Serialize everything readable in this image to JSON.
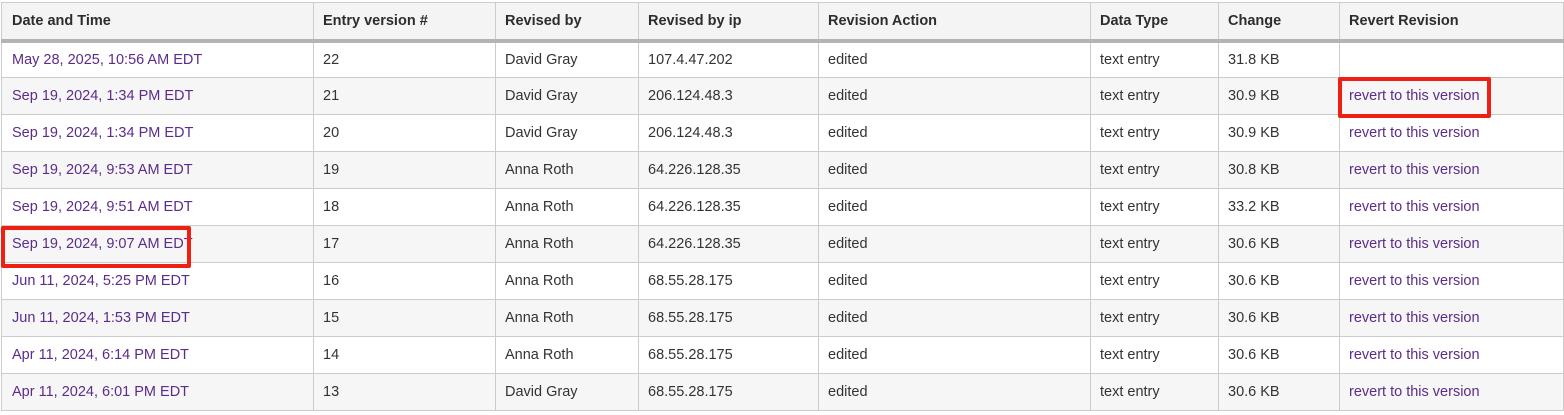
{
  "table": {
    "columns": [
      {
        "key": "date",
        "label": "Date and Time"
      },
      {
        "key": "version",
        "label": "Entry version #"
      },
      {
        "key": "revised_by",
        "label": "Revised by"
      },
      {
        "key": "revised_by_ip",
        "label": "Revised by ip"
      },
      {
        "key": "action",
        "label": "Revision Action"
      },
      {
        "key": "data_type",
        "label": "Data Type"
      },
      {
        "key": "change",
        "label": "Change"
      },
      {
        "key": "revert",
        "label": "Revert Revision"
      }
    ],
    "rows": [
      {
        "date": "May 28, 2025, 10:56 AM EDT",
        "version": "22",
        "revised_by": "David Gray",
        "revised_by_ip": "107.4.47.202",
        "action": "edited",
        "data_type": "text entry",
        "change": "31.8 KB",
        "revert": ""
      },
      {
        "date": "Sep 19, 2024, 1:34 PM EDT",
        "version": "21",
        "revised_by": "David Gray",
        "revised_by_ip": "206.124.48.3",
        "action": "edited",
        "data_type": "text entry",
        "change": "30.9 KB",
        "revert": "revert to this version"
      },
      {
        "date": "Sep 19, 2024, 1:34 PM EDT",
        "version": "20",
        "revised_by": "David Gray",
        "revised_by_ip": "206.124.48.3",
        "action": "edited",
        "data_type": "text entry",
        "change": "30.9 KB",
        "revert": "revert to this version"
      },
      {
        "date": "Sep 19, 2024, 9:53 AM EDT",
        "version": "19",
        "revised_by": "Anna Roth",
        "revised_by_ip": "64.226.128.35",
        "action": "edited",
        "data_type": "text entry",
        "change": "30.8 KB",
        "revert": "revert to this version"
      },
      {
        "date": "Sep 19, 2024, 9:51 AM EDT",
        "version": "18",
        "revised_by": "Anna Roth",
        "revised_by_ip": "64.226.128.35",
        "action": "edited",
        "data_type": "text entry",
        "change": "33.2 KB",
        "revert": "revert to this version"
      },
      {
        "date": "Sep 19, 2024, 9:07 AM EDT",
        "version": "17",
        "revised_by": "Anna Roth",
        "revised_by_ip": "64.226.128.35",
        "action": "edited",
        "data_type": "text entry",
        "change": "30.6 KB",
        "revert": "revert to this version"
      },
      {
        "date": "Jun 11, 2024, 5:25 PM EDT",
        "version": "16",
        "revised_by": "Anna Roth",
        "revised_by_ip": "68.55.28.175",
        "action": "edited",
        "data_type": "text entry",
        "change": "30.6 KB",
        "revert": "revert to this version"
      },
      {
        "date": "Jun 11, 2024, 1:53 PM EDT",
        "version": "15",
        "revised_by": "Anna Roth",
        "revised_by_ip": "68.55.28.175",
        "action": "edited",
        "data_type": "text entry",
        "change": "30.6 KB",
        "revert": "revert to this version"
      },
      {
        "date": "Apr 11, 2024, 6:14 PM EDT",
        "version": "14",
        "revised_by": "Anna Roth",
        "revised_by_ip": "68.55.28.175",
        "action": "edited",
        "data_type": "text entry",
        "change": "30.6 KB",
        "revert": "revert to this version"
      },
      {
        "date": "Apr 11, 2024, 6:01 PM EDT",
        "version": "13",
        "revised_by": "David Gray",
        "revised_by_ip": "68.55.28.175",
        "action": "edited",
        "data_type": "text entry",
        "change": "30.6 KB",
        "revert": "revert to this version"
      }
    ]
  },
  "annotations": {
    "highlight_color": "#ee2014",
    "highlighted_revert_link_row_version": "21",
    "highlighted_date_row_version": "17"
  },
  "colors": {
    "link_purple": "#5b2c8a",
    "header_background": "#f4f4f4",
    "alternate_row_background": "#f6f6f6",
    "cell_border": "#cccccc",
    "header_bottom_border": "#b4b4b4",
    "body_text": "#333333"
  }
}
